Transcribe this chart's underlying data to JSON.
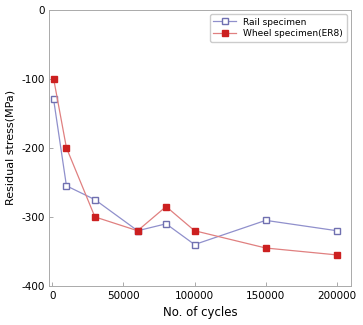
{
  "rail_x": [
    1000,
    10000,
    30000,
    60000,
    80000,
    100000,
    150000,
    200000
  ],
  "rail_y": [
    -130,
    -255,
    -275,
    -320,
    -310,
    -340,
    -305,
    -320
  ],
  "wheel_x": [
    1000,
    10000,
    30000,
    60000,
    80000,
    100000,
    150000,
    200000
  ],
  "wheel_y": [
    -100,
    -200,
    -300,
    -320,
    -285,
    -320,
    -345,
    -355
  ],
  "rail_label": "Rail specimen",
  "wheel_label": "Wheel specimen(ER8)",
  "rail_marker_color": "#7070b0",
  "rail_line_color": "#9090cc",
  "wheel_marker_color": "#cc2020",
  "wheel_line_color": "#e08080",
  "xlabel": "No. of cycles",
  "ylabel": "Residual stress(MPa)",
  "xlim": [
    -2000,
    210000
  ],
  "ylim": [
    -400,
    0
  ],
  "yticks": [
    0,
    -100,
    -200,
    -300,
    -400
  ],
  "xticks": [
    0,
    50000,
    100000,
    150000,
    200000
  ],
  "xtick_labels": [
    "0",
    "50000",
    "100000",
    "150000",
    "200000"
  ],
  "figsize": [
    3.63,
    3.25
  ],
  "dpi": 100
}
